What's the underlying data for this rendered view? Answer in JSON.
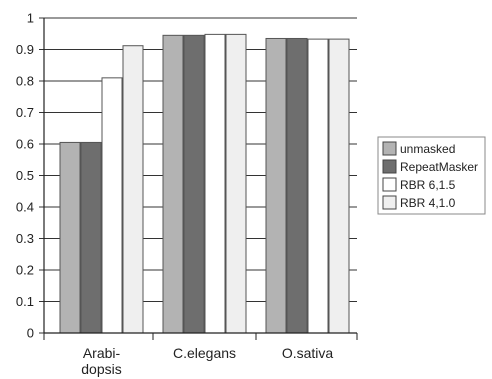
{
  "chart_data": {
    "type": "bar",
    "categories": [
      [
        "Arabi-",
        "dopsis"
      ],
      [
        "C.elegans"
      ],
      [
        "O.sativa"
      ]
    ],
    "series": [
      {
        "name": "unmasked",
        "color": "#b3b3b3",
        "values": [
          0.605,
          0.945,
          0.935
        ]
      },
      {
        "name": "RepeatMasker",
        "color": "#6e6e6e",
        "values": [
          0.605,
          0.945,
          0.935
        ]
      },
      {
        "name": "RBR 6,1.5",
        "color": "#ffffff",
        "values": [
          0.81,
          0.948,
          0.933
        ]
      },
      {
        "name": "RBR 4,1.0",
        "color": "#efefef",
        "values": [
          0.912,
          0.948,
          0.933
        ]
      }
    ],
    "ylim": [
      0,
      1
    ],
    "yticks": [
      "0",
      "0.1",
      "0.2",
      "0.3",
      "0.4",
      "0.5",
      "0.6",
      "0.7",
      "0.8",
      "0.9",
      "1"
    ],
    "grid": true,
    "legend_position": "right"
  }
}
